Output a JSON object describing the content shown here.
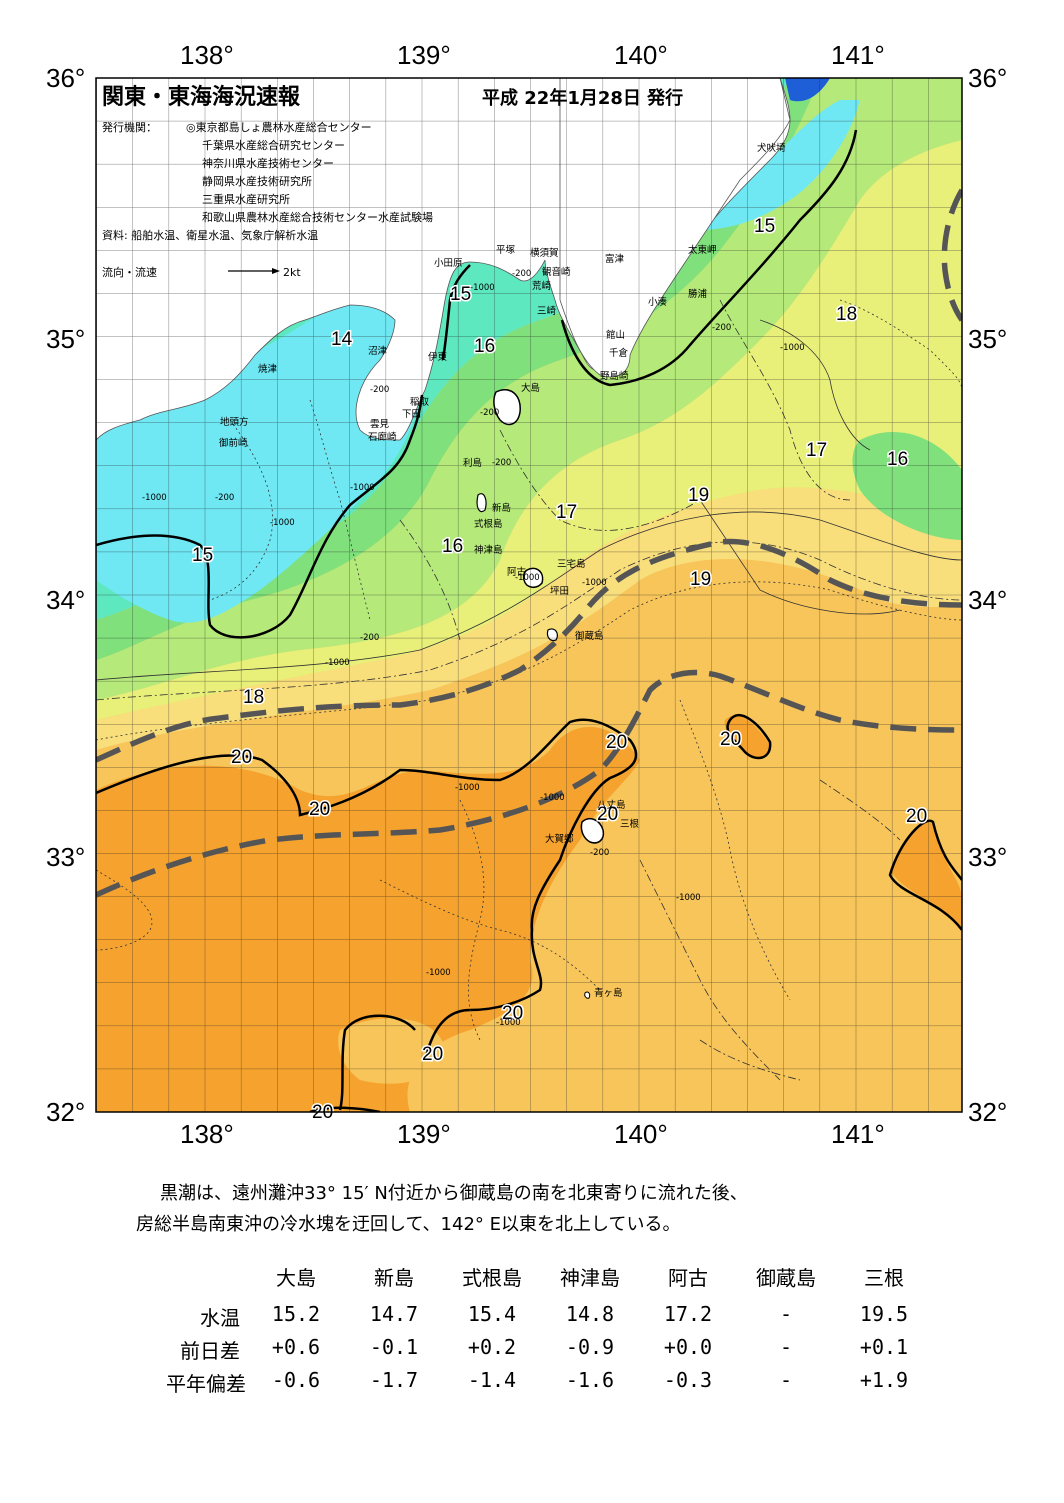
{
  "header": {
    "title": "関東・東海海況速報",
    "date": "平成 22年1月28日 発行",
    "issuer_label": "発行機関：",
    "issuers": [
      "◎東京都島しょ農林水産総合センター",
      "千葉県水産総合研究センター",
      "神奈川県水産技術センター",
      "静岡県水産技術研究所",
      "三重県水産研究所",
      "和歌山県農林水産総合技術センター水産試験場"
    ],
    "sources": "資料: 船舶水温、衛星水温、気象庁解析水温",
    "current_legend_label": "流向・流速",
    "current_legend_value": "2kt"
  },
  "axes": {
    "longitude_labels": [
      "138°",
      "139°",
      "140°",
      "141°"
    ],
    "latitude_labels": [
      "36°",
      "35°",
      "34°",
      "33°",
      "32°"
    ]
  },
  "contour_labels": [
    {
      "text": "15"
    },
    {
      "text": "14"
    },
    {
      "text": "15"
    },
    {
      "text": "16"
    },
    {
      "text": "15"
    },
    {
      "text": "18"
    },
    {
      "text": "17"
    },
    {
      "text": "16"
    },
    {
      "text": "19"
    },
    {
      "text": "17"
    },
    {
      "text": "16"
    },
    {
      "text": "19"
    },
    {
      "text": "18"
    },
    {
      "text": "20"
    },
    {
      "text": "20"
    },
    {
      "text": "20"
    },
    {
      "text": "20"
    },
    {
      "text": "20"
    },
    {
      "text": "20"
    },
    {
      "text": "20"
    },
    {
      "text": "20"
    },
    {
      "text": "20"
    }
  ],
  "depth_labels": [
    "-200",
    "-200",
    "-200",
    "-1000",
    "-200",
    "-1000",
    "-200",
    "-1000",
    "-1000",
    "-200",
    "-200",
    "-1000",
    "-1000",
    "-1000",
    "-1000",
    "-1000",
    "-200",
    "-1000",
    "-1000",
    "-1000",
    "-1000"
  ],
  "places": [
    "犬吠埼",
    "太東岬",
    "勝浦",
    "小湊",
    "富津",
    "観音崎",
    "横須賀",
    "平塚",
    "小田原",
    "荒崎",
    "三崎",
    "館山",
    "千倉",
    "野島崎",
    "沼津",
    "伊東",
    "稲取",
    "下田",
    "雲見",
    "石廊崎",
    "焼津",
    "地頭方",
    "御前崎",
    "大島",
    "利島",
    "新島",
    "式根島",
    "神津島",
    "三宅島",
    "阿古",
    "坪田",
    "御蔵島",
    "八丈島",
    "三根",
    "大賀郷",
    "青ヶ島"
  ],
  "summary": {
    "line1": "黒潮は、遠州灘沖33° 15′ N付近から御蔵島の南を北東寄りに流れた後、",
    "line2": "房総半島南東沖の冷水塊を迂回して、142° E以東を北上している。"
  },
  "table": {
    "columns": [
      "大島",
      "新島",
      "式根島",
      "神津島",
      "阿古",
      "御蔵島",
      "三根"
    ],
    "rows": [
      {
        "label": "水温",
        "values": [
          "15.2",
          "14.7",
          "15.4",
          "14.8",
          "17.2",
          "-",
          "19.5"
        ]
      },
      {
        "label": "前日差",
        "values": [
          "+0.6",
          "-0.1",
          "+0.2",
          "-0.9",
          "+0.0",
          "-",
          "+0.1"
        ]
      },
      {
        "label": "平年偏差",
        "values": [
          "-0.6",
          "-1.7",
          "-1.4",
          "-1.6",
          "-0.3",
          "-",
          "+1.9"
        ]
      }
    ]
  },
  "colors": {
    "warm_deep": "#f5a32e",
    "warm": "#f7c55a",
    "warm_light": "#f9de7c",
    "yellow": "#e8f07a",
    "green_light": "#b5ea7a",
    "green": "#7fe07c",
    "teal": "#5ee8c0",
    "cyan": "#6fe8f3",
    "blue": "#1e5fd8",
    "kuroshio_line": "#555555"
  }
}
